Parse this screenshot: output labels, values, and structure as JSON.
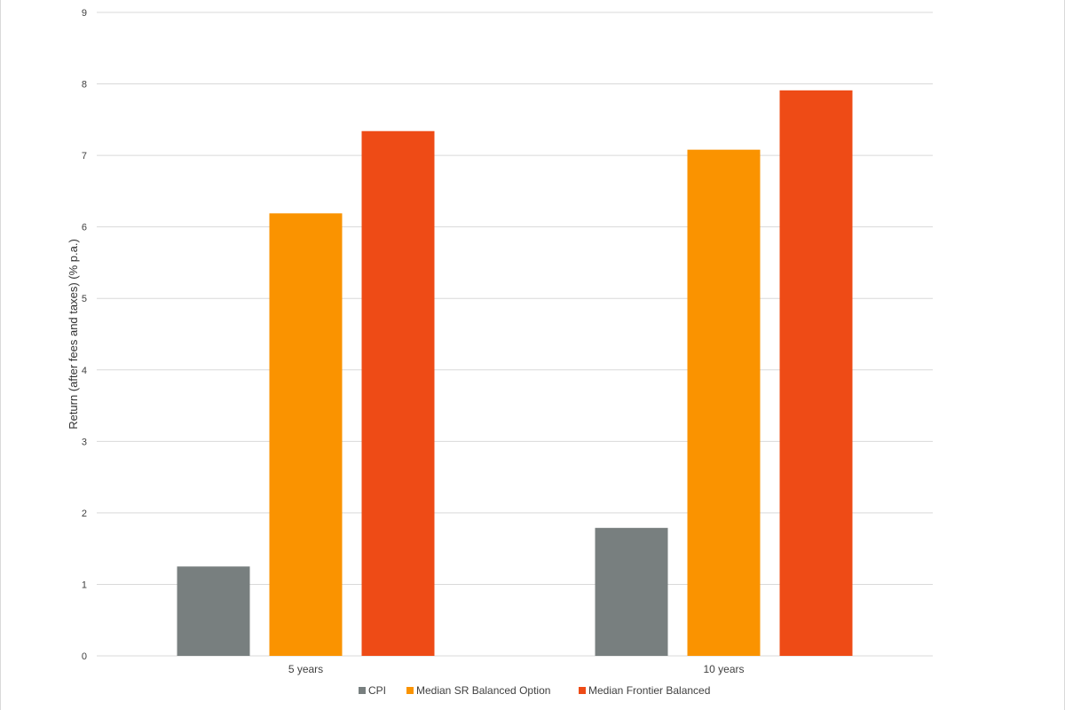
{
  "chart_data": {
    "type": "bar",
    "title": "",
    "xlabel": "",
    "ylabel": "Return (after fees and taxes) (% p.a.)",
    "ylim": [
      0,
      9
    ],
    "yticks": [
      0,
      1,
      2,
      3,
      4,
      5,
      6,
      7,
      8,
      9
    ],
    "grid": true,
    "legend_position": "bottom",
    "categories": [
      "5 years",
      "10 years"
    ],
    "series": [
      {
        "name": "CPI",
        "color": "#787F7F",
        "values": [
          1.25,
          1.79
        ]
      },
      {
        "name": "Median SR Balanced Option",
        "color": "#FA9300",
        "values": [
          6.19,
          7.08
        ]
      },
      {
        "name": "Median Frontier Balanced",
        "color": "#EE4B16",
        "values": [
          7.34,
          7.91
        ]
      }
    ]
  }
}
